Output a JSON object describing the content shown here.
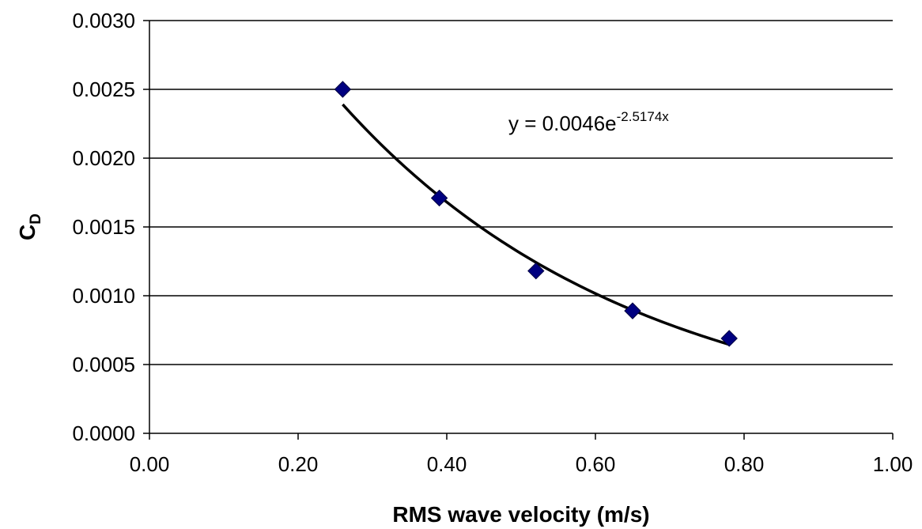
{
  "chart_data": {
    "type": "scatter",
    "xlabel": "RMS wave velocity (m/s)",
    "ylabel": "C",
    "ylabel_subscript": "D",
    "xlim": [
      0.0,
      1.0
    ],
    "ylim": [
      0.0,
      0.003
    ],
    "x_ticks": [
      "0.00",
      "0.20",
      "0.40",
      "0.60",
      "0.80",
      "1.00"
    ],
    "y_ticks": [
      "0.0000",
      "0.0005",
      "0.0010",
      "0.0015",
      "0.0020",
      "0.0025",
      "0.0030"
    ],
    "grid": "horizontal",
    "series": [
      {
        "marker": "diamond",
        "color": "#000080",
        "x": [
          0.26,
          0.39,
          0.52,
          0.65,
          0.78
        ],
        "y": [
          0.0025,
          0.00171,
          0.00118,
          0.00089,
          0.00069
        ]
      }
    ],
    "trendline": {
      "type": "exponential",
      "a": 0.0046,
      "b": -2.5174,
      "color": "#000000",
      "equation_prefix": "y = 0.0046e",
      "equation_exponent": "-2.5174x"
    }
  }
}
